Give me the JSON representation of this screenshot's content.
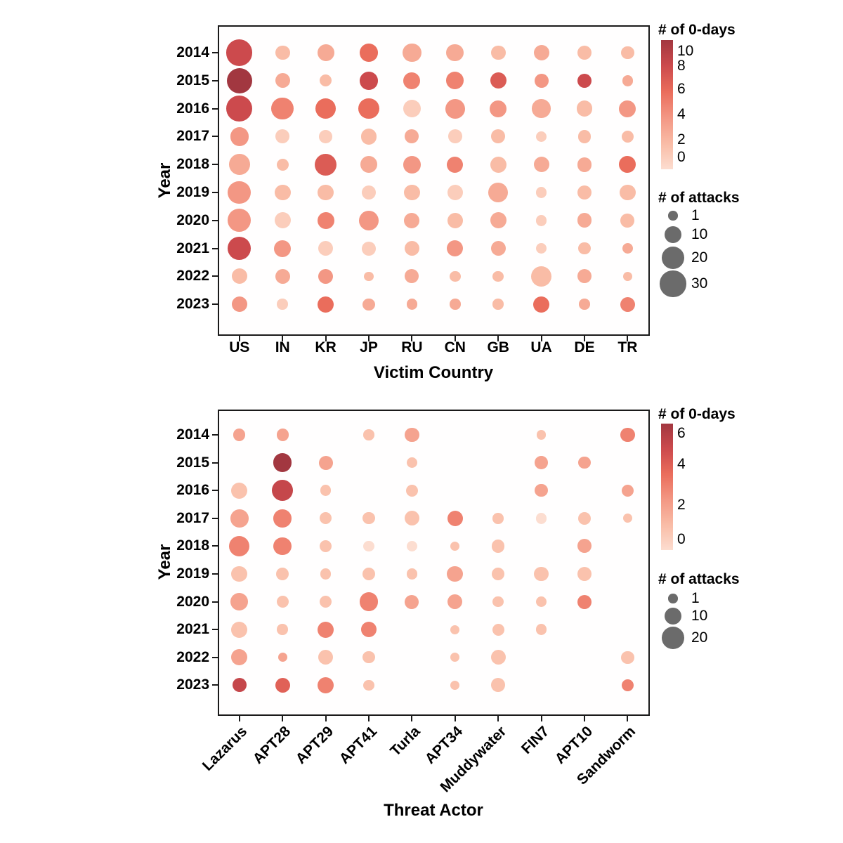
{
  "figure": {
    "background": "#ffffff",
    "text_color": "#000000",
    "axis_line_color": "#1a1a1a",
    "legend_circle_color": "#6b6b6b",
    "bubble_color_scale_stops": [
      "#fcddd0",
      "#f9bca6",
      "#f39784",
      "#ea6d5c",
      "#cc4a4d",
      "#a23740"
    ]
  },
  "chart_data": [
    {
      "type": "bubble",
      "xlabel": "Victim Country",
      "ylabel": "Year",
      "x_categories": [
        "US",
        "IN",
        "KR",
        "JP",
        "RU",
        "CN",
        "GB",
        "UA",
        "DE",
        "TR"
      ],
      "y_categories": [
        "2014",
        "2015",
        "2016",
        "2017",
        "2018",
        "2019",
        "2020",
        "2021",
        "2022",
        "2023"
      ],
      "values_format": "[attacks, zero_days] per cell, null = no bubble",
      "color_legend": {
        "title": "# of 0-days",
        "tick_labels": [
          "10",
          "8",
          "6",
          "4",
          "2",
          "0"
        ],
        "vmin": 0,
        "vmax": 10
      },
      "size_legend": {
        "title": "# of attacks",
        "entries": [
          "1",
          "10",
          "20",
          "30"
        ],
        "entry_values": [
          1,
          10,
          20,
          30
        ]
      },
      "rows": [
        {
          "year": "2014",
          "values": [
            [
              30,
              8
            ],
            [
              6,
              2
            ],
            [
              9,
              3
            ],
            [
              11,
              6
            ],
            [
              12,
              3
            ],
            [
              10,
              3
            ],
            [
              6,
              2
            ],
            [
              7,
              3
            ],
            [
              6,
              2
            ],
            [
              4,
              2
            ]
          ]
        },
        {
          "year": "2015",
          "values": [
            [
              28,
              10
            ],
            [
              6,
              3
            ],
            [
              3,
              2
            ],
            [
              11,
              8
            ],
            [
              9,
              5
            ],
            [
              10,
              5
            ],
            [
              8,
              7
            ],
            [
              5,
              4
            ],
            [
              5,
              8
            ],
            [
              2,
              3
            ]
          ]
        },
        {
          "year": "2016",
          "values": [
            [
              30,
              8
            ],
            [
              20,
              5
            ],
            [
              16,
              6
            ],
            [
              16,
              6
            ],
            [
              11,
              1
            ],
            [
              14,
              4
            ],
            [
              9,
              4
            ],
            [
              12,
              3
            ],
            [
              8,
              2
            ],
            [
              9,
              4
            ]
          ]
        },
        {
          "year": "2017",
          "values": [
            [
              12,
              4
            ],
            [
              5,
              1
            ],
            [
              4,
              1
            ],
            [
              8,
              2
            ],
            [
              5,
              3
            ],
            [
              5,
              1
            ],
            [
              5,
              2
            ],
            [
              2,
              1
            ],
            [
              4,
              2
            ],
            [
              3,
              2
            ]
          ]
        },
        {
          "year": "2018",
          "values": [
            [
              17,
              3
            ],
            [
              3,
              2
            ],
            [
              19,
              7
            ],
            [
              9,
              3
            ],
            [
              10,
              4
            ],
            [
              8,
              5
            ],
            [
              8,
              2
            ],
            [
              7,
              3
            ],
            [
              6,
              3
            ],
            [
              9,
              6
            ]
          ]
        },
        {
          "year": "2019",
          "values": [
            [
              22,
              4
            ],
            [
              8,
              2
            ],
            [
              8,
              2
            ],
            [
              6,
              1
            ],
            [
              8,
              2
            ],
            [
              7,
              1
            ],
            [
              14,
              3
            ],
            [
              2,
              1
            ],
            [
              6,
              2
            ],
            [
              8,
              2
            ]
          ]
        },
        {
          "year": "2020",
          "values": [
            [
              22,
              4
            ],
            [
              8,
              1
            ],
            [
              9,
              5
            ],
            [
              14,
              4
            ],
            [
              7,
              3
            ],
            [
              7,
              2
            ],
            [
              8,
              3
            ],
            [
              2,
              1
            ],
            [
              6,
              3
            ],
            [
              5,
              2
            ]
          ]
        },
        {
          "year": "2021",
          "values": [
            [
              22,
              8
            ],
            [
              9,
              4
            ],
            [
              6,
              1
            ],
            [
              5,
              1
            ],
            [
              6,
              2
            ],
            [
              8,
              4
            ],
            [
              6,
              3
            ],
            [
              2,
              1
            ],
            [
              3,
              2
            ],
            [
              2,
              3
            ]
          ]
        },
        {
          "year": "2022",
          "values": [
            [
              7,
              2
            ],
            [
              6,
              3
            ],
            [
              6,
              4
            ],
            [
              1,
              2
            ],
            [
              5,
              3
            ],
            [
              2,
              2
            ],
            [
              2,
              2
            ],
            [
              16,
              2
            ],
            [
              5,
              3
            ],
            [
              1,
              2
            ]
          ]
        },
        {
          "year": "2023",
          "values": [
            [
              7,
              4
            ],
            [
              2,
              1
            ],
            [
              8,
              6
            ],
            [
              3,
              3
            ],
            [
              2,
              3
            ],
            [
              2,
              3
            ],
            [
              2,
              2
            ],
            [
              8,
              6
            ],
            [
              2,
              3
            ],
            [
              6,
              5
            ]
          ]
        }
      ]
    },
    {
      "type": "bubble",
      "xlabel": "Threat Actor",
      "ylabel": "Year",
      "x_categories": [
        "Lazarus",
        "APT28",
        "APT29",
        "APT41",
        "Turla",
        "APT34",
        "Muddywater",
        "FIN7",
        "APT10",
        "Sandworm"
      ],
      "y_categories": [
        "2014",
        "2015",
        "2016",
        "2017",
        "2018",
        "2019",
        "2020",
        "2021",
        "2022",
        "2023"
      ],
      "values_format": "[attacks, zero_days] per cell, null = no bubble",
      "color_legend": {
        "title": "# of 0-days",
        "tick_labels": [
          "6",
          "4",
          "2",
          "0"
        ],
        "vmin": 0,
        "vmax": 6
      },
      "size_legend": {
        "title": "# of attacks",
        "entries": [
          "1",
          "10",
          "20"
        ],
        "entry_values": [
          1,
          10,
          20
        ]
      },
      "rows": [
        {
          "year": "2014",
          "values": [
            [
              3,
              2
            ],
            [
              3,
              2
            ],
            null,
            [
              2,
              1
            ],
            [
              6,
              2
            ],
            null,
            null,
            [
              1,
              1
            ],
            null,
            [
              6,
              3
            ]
          ]
        },
        {
          "year": "2015",
          "values": [
            null,
            [
              12,
              6
            ],
            [
              5,
              2
            ],
            null,
            [
              2,
              1
            ],
            null,
            null,
            [
              4,
              2
            ],
            [
              3,
              2
            ],
            null
          ]
        },
        {
          "year": "2016",
          "values": [
            [
              8,
              1
            ],
            [
              17,
              5
            ],
            [
              2,
              1
            ],
            null,
            [
              3,
              1
            ],
            null,
            null,
            [
              4,
              2
            ],
            null,
            [
              3,
              2
            ]
          ]
        },
        {
          "year": "2017",
          "values": [
            [
              11,
              2
            ],
            [
              11,
              3
            ],
            [
              3,
              1
            ],
            [
              3,
              1
            ],
            [
              6,
              1
            ],
            [
              7,
              3
            ],
            [
              2,
              1
            ],
            [
              2,
              0
            ],
            [
              4,
              1
            ],
            [
              1,
              1
            ]
          ]
        },
        {
          "year": "2018",
          "values": [
            [
              16,
              3
            ],
            [
              11,
              3
            ],
            [
              3,
              1
            ],
            [
              2,
              0
            ],
            [
              2,
              0
            ],
            [
              1,
              1
            ],
            [
              4,
              1
            ],
            null,
            [
              5,
              2
            ],
            null
          ]
        },
        {
          "year": "2019",
          "values": [
            [
              8,
              1
            ],
            [
              4,
              1
            ],
            [
              2,
              1
            ],
            [
              4,
              1
            ],
            [
              2,
              1
            ],
            [
              8,
              2
            ],
            [
              4,
              1
            ],
            [
              6,
              1
            ],
            [
              5,
              1
            ],
            null
          ]
        },
        {
          "year": "2020",
          "values": [
            [
              10,
              2
            ],
            [
              3,
              1
            ],
            [
              3,
              1
            ],
            [
              12,
              3
            ],
            [
              5,
              2
            ],
            [
              6,
              2
            ],
            [
              2,
              1
            ],
            [
              2,
              1
            ],
            [
              5,
              3
            ],
            null
          ]
        },
        {
          "year": "2021",
          "values": [
            [
              8,
              1
            ],
            [
              2,
              1
            ],
            [
              8,
              3
            ],
            [
              7,
              3
            ],
            null,
            [
              1,
              1
            ],
            [
              3,
              1
            ],
            [
              2,
              1
            ],
            null,
            null
          ]
        },
        {
          "year": "2022",
          "values": [
            [
              8,
              2
            ],
            [
              1,
              2
            ],
            [
              6,
              1
            ],
            [
              3,
              1
            ],
            null,
            [
              1,
              1
            ],
            [
              6,
              1
            ],
            null,
            null,
            [
              4,
              1
            ]
          ]
        },
        {
          "year": "2023",
          "values": [
            [
              5,
              5
            ],
            [
              6,
              4
            ],
            [
              8,
              3
            ],
            [
              2,
              1
            ],
            null,
            [
              1,
              1
            ],
            [
              5,
              1
            ],
            null,
            null,
            [
              3,
              3
            ]
          ]
        }
      ]
    }
  ]
}
